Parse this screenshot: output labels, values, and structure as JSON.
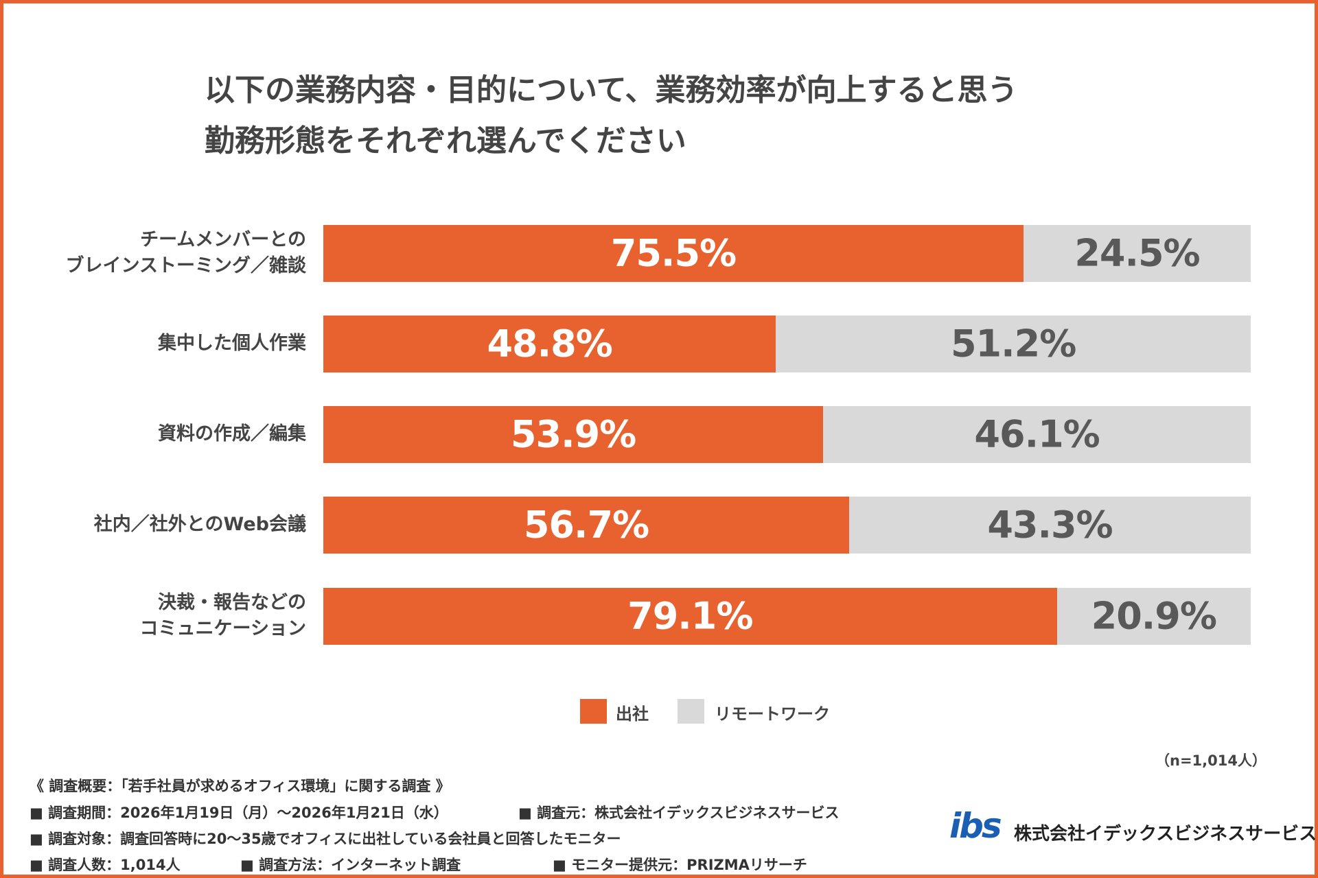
{
  "chart_data": {
    "type": "stacked-barh",
    "title": "以下の業務内容・目的について、業務効率が向上すると思う\n勤務形態をそれぞれ選んでください",
    "categories": [
      "チームメンバーとの\nブレインストーミング／雑談",
      "集中した個人作業",
      "資料の作成／編集",
      "社内／社外とのWeb会議",
      "決裁・報告などの\nコミュニケーション"
    ],
    "series": [
      {
        "name": "出社",
        "color": "#e8622f",
        "label_color": "#ffffff",
        "values": [
          75.5,
          48.8,
          53.9,
          56.7,
          79.1
        ],
        "value_labels": [
          "75.5%",
          "48.8%",
          "53.9%",
          "56.7%",
          "79.1%"
        ]
      },
      {
        "name": "リモートワーク",
        "color": "#d9d9d9",
        "label_color": "#595959",
        "values": [
          24.5,
          51.2,
          46.1,
          43.3,
          20.9
        ],
        "value_labels": [
          "24.5%",
          "51.2%",
          "46.1%",
          "43.3%",
          "20.9%"
        ]
      }
    ],
    "xlim": [
      0,
      100
    ]
  },
  "sample": "（n=1,014人）",
  "notes": {
    "heading": "《 調査概要：「若手社員が求めるオフィス環境」に関する調査 》",
    "items": [
      "■ 調査期間：2026年1月19日（月）〜2026年1月21日（水）",
      "■ 調査元：株式会社イデックスビジネスサービス",
      "■ 調査対象：調査回答時に20〜35歳でオフィスに出社している会社員と回答したモニター",
      "■ 調査人数：1,014人",
      "■ 調査方法：インターネット調査",
      "■ モニター提供元：PRIZMAリサーチ"
    ]
  },
  "logo": {
    "mark": "ibs",
    "company": "株式会社イデックスビジネスサービス"
  }
}
